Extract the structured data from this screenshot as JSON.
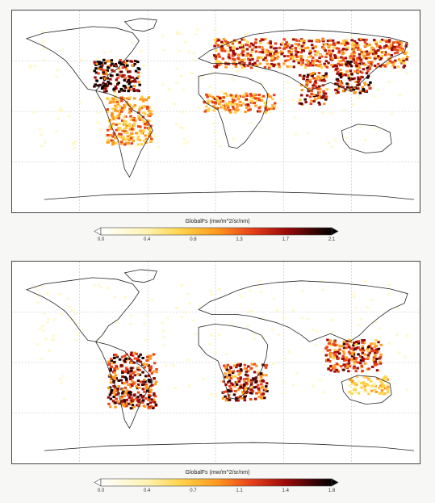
{
  "panels": [
    {
      "colorbar_title": "GlobalFs (mw/m^2/sr/nm)",
      "ticks": [
        "0.0",
        "0.4",
        "0.8",
        "1.3",
        "1.7",
        "2.1"
      ],
      "hotspots": [
        {
          "region": "eastern-us",
          "level": 0.95
        },
        {
          "region": "europe-russia",
          "level": 0.65
        },
        {
          "region": "india",
          "level": 0.75
        },
        {
          "region": "east-china",
          "level": 0.8
        },
        {
          "region": "amazon",
          "level": 0.5
        },
        {
          "region": "sahel",
          "level": 0.55
        }
      ]
    },
    {
      "colorbar_title": "GlobalFs (mw/m^2/sr/nm)",
      "ticks": [
        "0.0",
        "0.4",
        "0.7",
        "1.1",
        "1.4",
        "1.8"
      ],
      "hotspots": [
        {
          "region": "brazil",
          "level": 0.8
        },
        {
          "region": "southern-africa",
          "level": 0.75
        },
        {
          "region": "southeast-asia",
          "level": 0.7
        },
        {
          "region": "north-australia",
          "level": 0.35
        }
      ]
    }
  ],
  "colormap": [
    "#ffffff",
    "#fff3b0",
    "#ffd24a",
    "#ff9a1e",
    "#e8421a",
    "#9c0a0a",
    "#3a0000",
    "#000000"
  ]
}
